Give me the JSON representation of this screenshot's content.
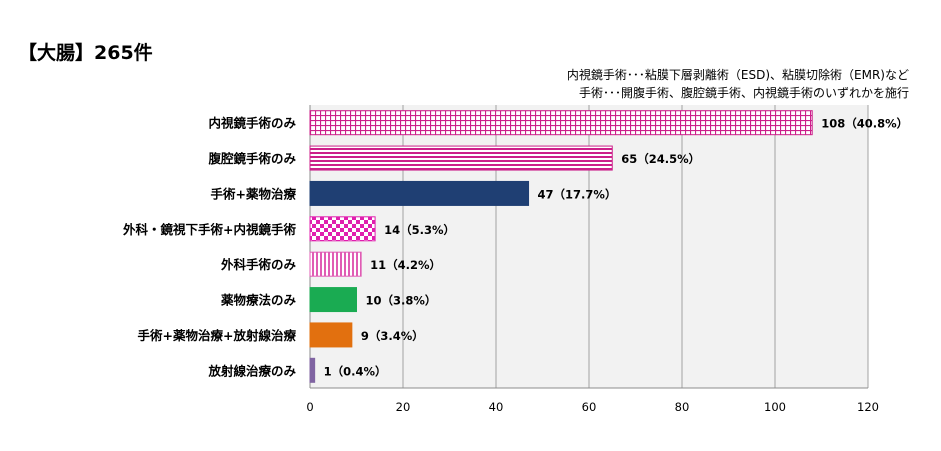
{
  "title": "【大腸】265件",
  "notes": [
    "内視鏡手術･･･粘膜下層剥離術（ESD)、粘膜切除術（EMR)など",
    "手術･･･開腹手術、腹腔鏡手術、内視鏡手術のいずれかを施行"
  ],
  "chart_data": {
    "type": "bar",
    "orientation": "horizontal",
    "title": "【大腸】265件",
    "categories": [
      "内視鏡手術のみ",
      "腹腔鏡手術のみ",
      "手術+薬物治療",
      "外科・鏡視下手術+内視鏡手術",
      "外科手術のみ",
      "薬物療法のみ",
      "手術+薬物治療+放射線治療",
      "放射線治療のみ"
    ],
    "values": [
      108,
      65,
      47,
      14,
      11,
      10,
      9,
      1
    ],
    "value_labels": [
      "108（40.8%）",
      "65（24.5%）",
      "47（17.7%）",
      "14（5.3%）",
      "11（4.2%）",
      "10（3.8%）",
      "9（3.4%）",
      "1（0.4%）"
    ],
    "bar_styles": [
      {
        "pattern": "grid",
        "color": "#cc1f8a"
      },
      {
        "pattern": "hstripe",
        "color": "#cc1f8a"
      },
      {
        "pattern": "solid",
        "color": "#1f3f73"
      },
      {
        "pattern": "checker",
        "color": "#e01fae"
      },
      {
        "pattern": "vstripe",
        "color": "#e05cb4"
      },
      {
        "pattern": "solid",
        "color": "#1aab52"
      },
      {
        "pattern": "solid",
        "color": "#e2700f"
      },
      {
        "pattern": "solid",
        "color": "#8064a2"
      }
    ],
    "xlim": [
      0,
      120
    ],
    "xticks": [
      "0",
      "20",
      "40",
      "60",
      "80",
      "100",
      "120"
    ],
    "grid": true,
    "plot_background": "#f2f2f2"
  }
}
